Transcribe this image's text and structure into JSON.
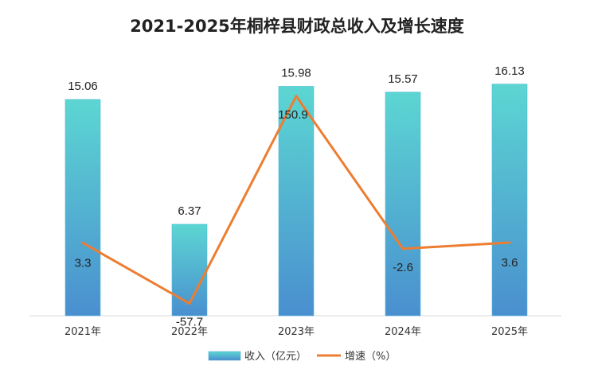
{
  "chart_data": {
    "type": "bar",
    "title": "2021-2025年桐梓县财政总收入及增长速度",
    "categories": [
      "2021年",
      "2022年",
      "2023年",
      "2024年",
      "2025年"
    ],
    "series": [
      {
        "name": "收入（亿元）",
        "type": "bar",
        "values": [
          15.06,
          6.37,
          15.98,
          15.57,
          16.13
        ],
        "labels": [
          "15.06",
          "6.37",
          "15.98",
          "15.57",
          "16.13"
        ]
      },
      {
        "name": "增速（%）",
        "type": "line",
        "values": [
          3.3,
          -57.7,
          150.9,
          -2.6,
          3.6
        ],
        "labels": [
          "3.3",
          "-57.7",
          "150.9",
          "-2.6",
          "3.6"
        ]
      }
    ],
    "bar_ylim": [
      0,
      18
    ],
    "line_ylim": [
      -70,
      190
    ],
    "grid": false,
    "legend_position": "bottom",
    "colors": {
      "bar_top": "#5cd6d2",
      "bar_bottom": "#4a8fd0",
      "line": "#ed7d31",
      "axis": "#d9d9d9",
      "title": "#222222"
    }
  }
}
